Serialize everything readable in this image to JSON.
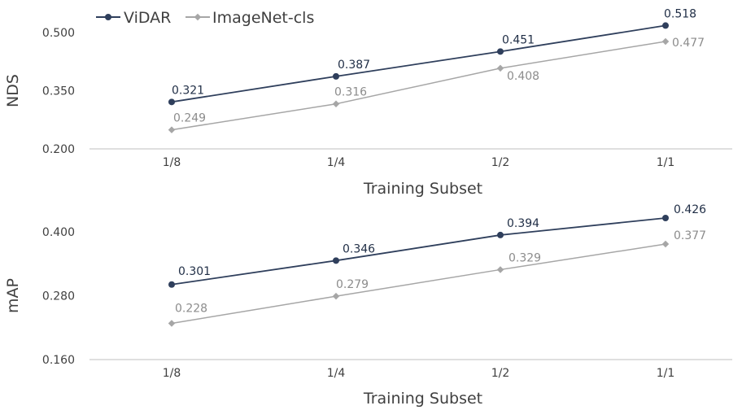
{
  "legend": [
    {
      "name": "ViDAR",
      "color": "#2f3f5c"
    },
    {
      "name": "ImageNet-cls",
      "color": "#a6a6a6"
    }
  ],
  "chart_data": [
    {
      "type": "line",
      "ylabel": "NDS",
      "xlabel": "Training Subset",
      "categories": [
        "1/8",
        "1/4",
        "1/2",
        "1/1"
      ],
      "ylim": [
        0.2,
        0.5
      ],
      "yticks": [
        "0.200",
        "0.350",
        "0.500"
      ],
      "grid": false,
      "legend_position": "top-left",
      "series": [
        {
          "name": "ViDAR",
          "color": "#2f3f5c",
          "values": [
            0.321,
            0.387,
            0.451,
            0.518
          ],
          "labels": [
            "0.321",
            "0.387",
            "0.451",
            "0.518"
          ]
        },
        {
          "name": "ImageNet-cls",
          "color": "#a6a6a6",
          "values": [
            0.249,
            0.316,
            0.408,
            0.477
          ],
          "labels": [
            "0.249",
            "0.316",
            "0.408",
            "0.477"
          ]
        }
      ]
    },
    {
      "type": "line",
      "ylabel": "mAP",
      "xlabel": "Training Subset",
      "categories": [
        "1/8",
        "1/4",
        "1/2",
        "1/1"
      ],
      "ylim": [
        0.16,
        0.4
      ],
      "yticks": [
        "0.160",
        "0.280",
        "0.400"
      ],
      "grid": false,
      "series": [
        {
          "name": "ViDAR",
          "color": "#2f3f5c",
          "values": [
            0.301,
            0.346,
            0.394,
            0.426
          ],
          "labels": [
            "0.301",
            "0.346",
            "0.394",
            "0.426"
          ]
        },
        {
          "name": "ImageNet-cls",
          "color": "#a6a6a6",
          "values": [
            0.228,
            0.279,
            0.329,
            0.377
          ],
          "labels": [
            "0.228",
            "0.279",
            "0.329",
            "0.377"
          ]
        }
      ]
    }
  ]
}
